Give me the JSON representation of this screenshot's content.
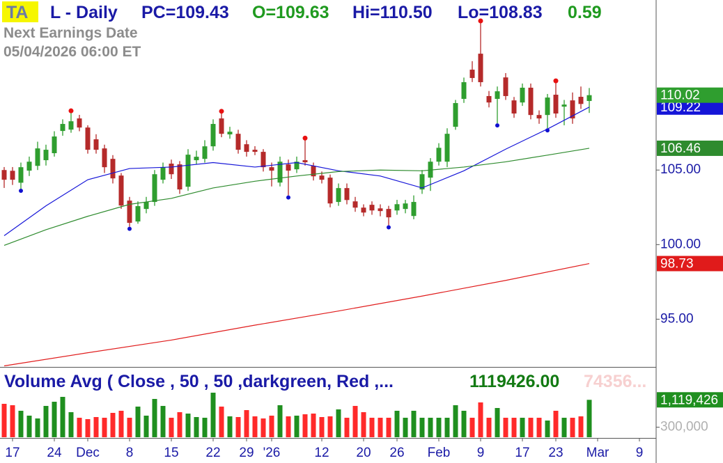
{
  "header": {
    "badge": "TA",
    "symbol": "L - Daily",
    "prev_close": "PC=109.43",
    "open": "O=109.63",
    "high": "Hi=110.50",
    "low": "Lo=108.83",
    "change": "0.59",
    "earnings_title": "Next Earnings Date",
    "earnings_date": "05/04/2026  06:00 ET"
  },
  "chart_data": [
    {
      "type": "candlestick",
      "categories": [
        null,
        "17",
        null,
        null,
        null,
        null,
        "24",
        null,
        null,
        null,
        "Dec",
        null,
        null,
        null,
        null,
        "8",
        null,
        null,
        null,
        null,
        "15",
        null,
        null,
        null,
        null,
        "22",
        null,
        null,
        null,
        "29",
        null,
        null,
        "'26",
        null,
        null,
        null,
        null,
        null,
        "12",
        null,
        null,
        null,
        null,
        "20",
        null,
        null,
        null,
        "26",
        null,
        null,
        null,
        null,
        "Feb",
        null,
        null,
        null,
        null,
        "9",
        null,
        null,
        null,
        null,
        "17",
        null,
        null,
        null,
        "23",
        null,
        null,
        null,
        null,
        "Mar",
        null,
        null,
        null,
        null,
        "9"
      ],
      "open": [
        105.0,
        104.95,
        104.15,
        104.96,
        105.28,
        105.66,
        106.13,
        107.62,
        107.71,
        108.46,
        107.85,
        107.06,
        106.45,
        105.75,
        104.63,
        102.95,
        101.55,
        102.39,
        102.86,
        104.35,
        105.43,
        105.38,
        103.88,
        105.66,
        105.75,
        106.59,
        108.46,
        107.39,
        107.43,
        106.73,
        106.36,
        106.22,
        105.19,
        104.16,
        105.38,
        105.05,
        105.66,
        105.28,
        104.63,
        104.49,
        102.86,
        103.79,
        102.9,
        102.48,
        102.67,
        102.43,
        102.39,
        102.29,
        102.39,
        101.92,
        103.7,
        104.49,
        105.56,
        105.56,
        107.9,
        109.77,
        111.73,
        112.8,
        109.96,
        109.77,
        111.21,
        109.67,
        109.53,
        110.52,
        108.69,
        108.69,
        110.05,
        109.25,
        109.67,
        109.91,
        109.63,
        null,
        null,
        null,
        null,
        null,
        null
      ],
      "high": [
        105.2,
        105.2,
        105.5,
        105.9,
        106.9,
        106.7,
        107.6,
        108.4,
        108.83,
        108.7,
        108.0,
        107.4,
        106.7,
        106.0,
        104.8,
        103.2,
        102.9,
        103.2,
        105.0,
        105.5,
        105.7,
        105.6,
        106.4,
        106.3,
        107.0,
        108.4,
        108.8,
        107.9,
        107.7,
        107.0,
        106.6,
        106.4,
        105.5,
        105.9,
        105.7,
        105.9,
        107.0,
        105.5,
        104.9,
        104.7,
        104.1,
        104.1,
        103.2,
        102.7,
        102.9,
        102.7,
        102.6,
        103.0,
        103.0,
        103.3,
        105.0,
        105.8,
        106.8,
        107.8,
        109.7,
        111.2,
        112.3,
        114.86,
        110.3,
        110.6,
        111.5,
        109.9,
        110.8,
        110.8,
        109.0,
        110.1,
        110.84,
        109.7,
        110.2,
        110.6,
        110.5,
        null,
        null,
        null,
        null,
        null,
        null
      ],
      "low": [
        103.8,
        104.0,
        103.75,
        104.6,
        105.0,
        105.3,
        105.9,
        107.3,
        107.5,
        107.6,
        106.1,
        106.1,
        104.8,
        104.1,
        102.4,
        101.2,
        101.4,
        102.1,
        102.6,
        104.1,
        104.4,
        103.4,
        103.6,
        105.4,
        105.5,
        106.3,
        107.2,
        107.1,
        106.1,
        105.9,
        106.0,
        104.9,
        103.9,
        103.9,
        103.3,
        104.8,
        105.3,
        104.3,
        104.1,
        102.5,
        102.6,
        102.7,
        102.2,
        101.9,
        102.0,
        101.9,
        101.3,
        102.0,
        102.1,
        101.7,
        103.4,
        103.6,
        105.3,
        105.2,
        107.7,
        109.5,
        110.9,
        110.6,
        109.2,
        108.13,
        109.7,
        108.5,
        109.3,
        108.4,
        108.1,
        107.8,
        108.5,
        108.0,
        108.1,
        109.1,
        108.83,
        null,
        null,
        null,
        null,
        null,
        null
      ],
      "close": [
        104.35,
        104.35,
        105.19,
        105.56,
        106.45,
        106.36,
        107.25,
        108.09,
        108.27,
        107.85,
        106.36,
        106.36,
        105.19,
        104.44,
        102.62,
        101.46,
        102.58,
        102.86,
        104.72,
        105.19,
        104.72,
        103.7,
        106.03,
        105.89,
        106.59,
        108.09,
        107.43,
        107.57,
        106.36,
        106.22,
        106.22,
        105.19,
        104.96,
        105.56,
        104.96,
        105.56,
        105.52,
        104.58,
        104.35,
        102.76,
        103.79,
        102.99,
        102.48,
        102.15,
        102.29,
        102.25,
        101.83,
        102.71,
        102.76,
        102.86,
        104.72,
        105.56,
        106.49,
        107.43,
        109.49,
        110.89,
        111.17,
        110.89,
        109.53,
        110.28,
        109.96,
        108.79,
        110.52,
        108.69,
        108.46,
        109.86,
        108.79,
        109.39,
        108.46,
        109.43,
        110.02,
        null,
        null,
        null,
        null,
        null,
        null
      ],
      "up_color": "#2f9e2f",
      "down_color": "#b52a2a",
      "pivot_highs": [
        8,
        26,
        36,
        57,
        66
      ],
      "pivot_lows": [
        2,
        15,
        34,
        46,
        59,
        65
      ],
      "pivot_high_color": "#e81010",
      "pivot_low_color": "#1010d0",
      "lines": [
        {
          "color": "#1515d8",
          "x": [
            0,
            5,
            10,
            15,
            20,
            25,
            30,
            35,
            40,
            45,
            50,
            55,
            60,
            65,
            70
          ],
          "values": [
            100.6,
            102.6,
            104.35,
            105.1,
            105.2,
            105.5,
            105.2,
            105.5,
            104.95,
            104.6,
            103.8,
            104.95,
            106.4,
            107.75,
            109.22
          ]
        },
        {
          "color": "#2e8b2e",
          "x": [
            0,
            5,
            10,
            15,
            20,
            25,
            30,
            35,
            40,
            45,
            50,
            55,
            60,
            65,
            70
          ],
          "values": [
            99.95,
            101.0,
            101.9,
            102.7,
            103.1,
            103.8,
            104.25,
            104.6,
            104.9,
            105.0,
            104.95,
            105.2,
            105.55,
            106.0,
            106.46
          ]
        },
        {
          "color": "#e01b1b",
          "x": [
            0,
            10,
            20,
            30,
            40,
            50,
            60,
            70
          ],
          "values": [
            91.87,
            92.75,
            93.6,
            94.6,
            95.55,
            96.55,
            97.6,
            98.73
          ]
        }
      ],
      "ylim": [
        91.8,
        116.4
      ],
      "yticks": [
        {
          "value": 95,
          "label": "95.00"
        },
        {
          "value": 100,
          "label": "100.00"
        },
        {
          "value": 105,
          "label": "105.00"
        }
      ]
    },
    {
      "type": "bar",
      "title": "Volume Avg ( Close , 50 , 50 ,darkgreen, Red ,...",
      "value_text": "1119426.00",
      "faded_text": "74356...",
      "values": [
        1000000,
        958000,
        792000,
        646000,
        562000,
        937000,
        1062000,
        1208000,
        750000,
        583000,
        542000,
        604000,
        583000,
        729000,
        792000,
        583000,
        917000,
        646000,
        1146000,
        937000,
        583000,
        750000,
        708000,
        604000,
        583000,
        1333000,
        917000,
        625000,
        604000,
        812000,
        625000,
        562000,
        646000,
        958000,
        625000,
        646000,
        687000,
        708000,
        604000,
        625000,
        833000,
        583000,
        937000,
        750000,
        583000,
        583000,
        583000,
        792000,
        583000,
        792000,
        583000,
        583000,
        583000,
        583000,
        958000,
        792000,
        583000,
        1042000,
        583000,
        875000,
        583000,
        583000,
        583000,
        583000,
        583000,
        500000,
        792000,
        583000,
        583000,
        625000,
        1119426,
        null,
        null,
        null,
        null,
        null,
        null
      ],
      "up_color": "#1f8f1f",
      "down_color": "#ff2a2a",
      "ylim": [
        0,
        2000000
      ],
      "yticks": [
        {
          "value": 300000,
          "label": "300,000"
        }
      ],
      "marker_label": {
        "value": 1119426,
        "label": "1,119,426"
      }
    }
  ]
}
